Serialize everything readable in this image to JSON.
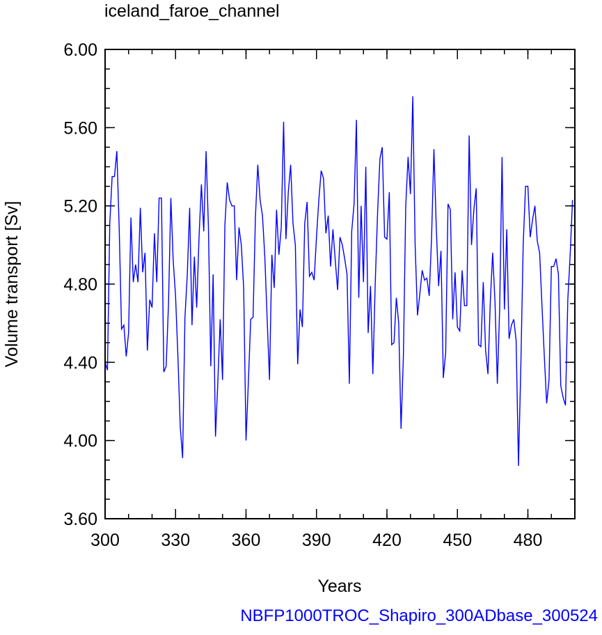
{
  "chart_data": {
    "type": "line",
    "title": "iceland_faroe_channel",
    "xlabel": "Years",
    "ylabel": "Volume transport [Sv]",
    "footer": "NBFP1000TROC_Shapiro_300ADbase_300524",
    "xlim": [
      300,
      500
    ],
    "ylim": [
      3.6,
      6.0
    ],
    "x_ticks": [
      300,
      330,
      360,
      390,
      420,
      450,
      480
    ],
    "x_tick_labels": [
      "300",
      "330",
      "360",
      "390",
      "420",
      "450",
      "480"
    ],
    "x_minor_step": 10,
    "y_ticks": [
      3.6,
      4.0,
      4.4,
      4.8,
      5.2,
      5.6,
      6.0
    ],
    "y_tick_labels": [
      "3.60",
      "4.00",
      "4.40",
      "4.80",
      "5.20",
      "5.60",
      "6.00"
    ],
    "y_minor_step": 0.1,
    "grid": false,
    "line_color": "#0000ff",
    "x_start": 300,
    "values": [
      4.4,
      4.36,
      5.11,
      5.35,
      5.35,
      5.48,
      5.09,
      4.57,
      4.59,
      4.43,
      4.55,
      5.14,
      4.81,
      4.9,
      4.81,
      5.19,
      4.86,
      4.96,
      4.46,
      4.72,
      4.68,
      5.06,
      4.81,
      5.24,
      5.24,
      4.35,
      4.38,
      4.7,
      5.24,
      4.92,
      4.74,
      4.43,
      4.07,
      3.91,
      4.63,
      4.85,
      5.19,
      4.59,
      4.94,
      4.68,
      5.04,
      5.31,
      5.07,
      5.48,
      5.09,
      4.38,
      4.85,
      4.02,
      4.3,
      4.62,
      4.31,
      5.1,
      5.32,
      5.23,
      5.2,
      5.2,
      4.82,
      5.09,
      5.0,
      4.78,
      4.0,
      4.3,
      4.62,
      4.63,
      5.14,
      5.41,
      5.23,
      5.15,
      4.94,
      4.62,
      4.31,
      4.95,
      4.78,
      5.18,
      4.95,
      5.09,
      5.63,
      5.03,
      5.27,
      5.41,
      5.11,
      5.0,
      4.39,
      4.67,
      4.58,
      5.11,
      5.22,
      4.84,
      4.86,
      4.82,
      5.04,
      5.23,
      5.38,
      5.34,
      5.06,
      5.15,
      4.89,
      5.08,
      4.92,
      4.77,
      5.04,
      5.0,
      4.93,
      4.85,
      4.29,
      5.07,
      5.21,
      5.64,
      4.73,
      5.2,
      4.81,
      5.4,
      4.55,
      4.79,
      4.34,
      4.8,
      5.16,
      5.44,
      5.5,
      5.04,
      5.03,
      5.27,
      4.49,
      4.5,
      4.73,
      4.6,
      4.06,
      4.43,
      5.2,
      5.45,
      5.26,
      5.76,
      5.0,
      4.64,
      4.75,
      4.87,
      4.82,
      4.83,
      4.74,
      5.04,
      5.49,
      5.09,
      4.79,
      4.97,
      4.32,
      4.45,
      5.21,
      5.18,
      4.62,
      4.86,
      4.58,
      4.56,
      4.87,
      4.69,
      4.69,
      5.56,
      5.0,
      5.18,
      5.29,
      4.49,
      4.48,
      4.81,
      4.46,
      4.34,
      4.71,
      4.96,
      4.71,
      4.29,
      4.68,
      5.45,
      4.67,
      5.08,
      4.52,
      4.59,
      4.62,
      4.51,
      3.87,
      4.38,
      5.0,
      5.3,
      5.3,
      5.04,
      5.13,
      5.2,
      5.02,
      4.96,
      4.69,
      4.43,
      4.19,
      4.31,
      4.89,
      4.89,
      4.93,
      4.85,
      4.28,
      4.22,
      4.18,
      4.72,
      4.95,
      5.23
    ]
  }
}
